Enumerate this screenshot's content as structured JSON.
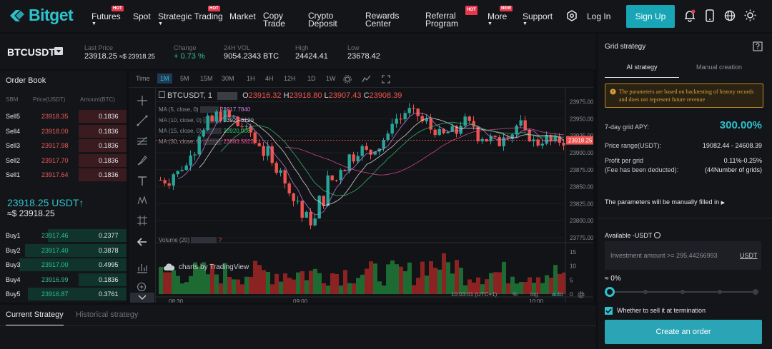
{
  "nav": {
    "logo": "Bitget",
    "futures": "Futures",
    "spot": "Spot",
    "strategic": "Strategic Trading",
    "market": "Market",
    "copy1": "Copy",
    "copy2": "Trade",
    "crypto1": "Crypto",
    "crypto2": "Deposit",
    "rewards1": "Rewards",
    "rewards2": "Center",
    "referral1": "Referral",
    "referral2": "Program",
    "more": "More",
    "support": "Support",
    "login": "Log In",
    "signup": "Sign Up",
    "hot": "HOT",
    "new": "NEW"
  },
  "ticker": {
    "pair": "BTCUSDT",
    "last_label": "Last Price",
    "last_value": "23918.25",
    "last_fiat": "≈$ 23918.25",
    "change_label": "Change",
    "change_value": "+ 0.73 %",
    "vol_label": "24H VOL",
    "vol_value": "9054.2343 BTC",
    "high_label": "High",
    "high_value": "24424.41",
    "low_label": "Low",
    "low_value": "23678.42"
  },
  "orderbook": {
    "title": "Order Book",
    "col1": "SBM",
    "col2": "Price(USDT)",
    "col3": "Amount(BTC)",
    "sells": [
      {
        "label": "Sell5",
        "price": "23918.35",
        "amount": "0.1836",
        "depth": 0.38
      },
      {
        "label": "Sell4",
        "price": "23918.00",
        "amount": "0.1836",
        "depth": 0.38
      },
      {
        "label": "Sell3",
        "price": "23917.98",
        "amount": "0.1836",
        "depth": 0.38
      },
      {
        "label": "Sell2",
        "price": "23917.70",
        "amount": "0.1836",
        "depth": 0.38
      },
      {
        "label": "Sell1",
        "price": "23917.64",
        "amount": "0.1836",
        "depth": 0.38
      }
    ],
    "mid_price": "23918.25 USDT",
    "mid_arrow": "↑",
    "mid_fiat": "≈$ 23918.25",
    "buys": [
      {
        "label": "Buy1",
        "price": "23917.46",
        "amount": "0.2377",
        "depth": 0.62
      },
      {
        "label": "Buy2",
        "price": "23917.40",
        "amount": "0.3878",
        "depth": 0.8
      },
      {
        "label": "Buy3",
        "price": "23917.00",
        "amount": "0.4995",
        "depth": 0.85
      },
      {
        "label": "Buy4",
        "price": "23916.99",
        "amount": "0.1836",
        "depth": 0.38
      },
      {
        "label": "Buy5",
        "price": "23916.87",
        "amount": "0.3761",
        "depth": 0.78
      }
    ]
  },
  "chart": {
    "intervals": [
      "Time",
      "1M",
      "5M",
      "15M",
      "30M",
      "1H",
      "4H",
      "12H",
      "1D",
      "1W"
    ],
    "active_interval": "1M",
    "symbol": "BTCUSDT, 1",
    "o_label": "O",
    "o": "23916.32",
    "h_label": "H",
    "h": "23918.80",
    "l_label": "L",
    "l": "23907.43",
    "c_label": "C",
    "c": "23908.39",
    "ma5": "MA (5, close, 0)",
    "ma5_val": "23917.7840",
    "ma10": "MA (10, close, 0)",
    "ma10_val": "23924.3120",
    "ma15": "MA (15, close, 0)",
    "ma15_val": "23920.0087",
    "ma30": "MA (30, close, 0)",
    "ma30_val": "23883.5822",
    "price_ticks": [
      "23975.00",
      "23950.00",
      "23925.00",
      "23900.00",
      "23875.00",
      "23850.00",
      "23825.00",
      "23800.00",
      "23775.00"
    ],
    "current_price": "23918.25",
    "volume_label": "Volume (20)",
    "vol_ticks": [
      "15",
      "10",
      "5",
      "0"
    ],
    "time_ticks": [
      "08:30",
      "09:00",
      "10:00"
    ],
    "watermark": "charts by TradingView",
    "clock": "10:03:01 (UTC+1)",
    "pct": "%",
    "log": "log",
    "auto": "auto"
  },
  "grid": {
    "title": "Grid strategy",
    "tab_ai": "AI strategy",
    "tab_manual": "Manual creation",
    "notice": "The parameters are based on backtesting of history records and does not represent future revenue",
    "apy_label": "7-day grid APY:",
    "apy_value": "300.00%",
    "range_label": "Price range(USDT):",
    "range_value": "19082.44 - 24608.39",
    "profit_label": "Profit per grid",
    "profit_sub": "(Fee has been deducted):",
    "profit_value": "0.11%-0.25%",
    "profit_grids": "(44Number of grids)",
    "manual_note": "The parameters will be manually filled in",
    "available": "Available -USDT",
    "invest_placeholder": "Investment amount >= 295.44266993",
    "invest_unit": "USDT",
    "slider_value": "≈ 0%",
    "slider_fraction": 0,
    "sell_label": "Whether to sell it at termination",
    "create": "Create an order"
  },
  "bottom": {
    "current": "Current Strategy",
    "history": "Historical strategy"
  },
  "colors": {
    "accent": "#1fb3c4",
    "up": "#26a69a",
    "down": "#ef5350",
    "buy": "#2ec28a",
    "sell": "#f05a5a"
  }
}
